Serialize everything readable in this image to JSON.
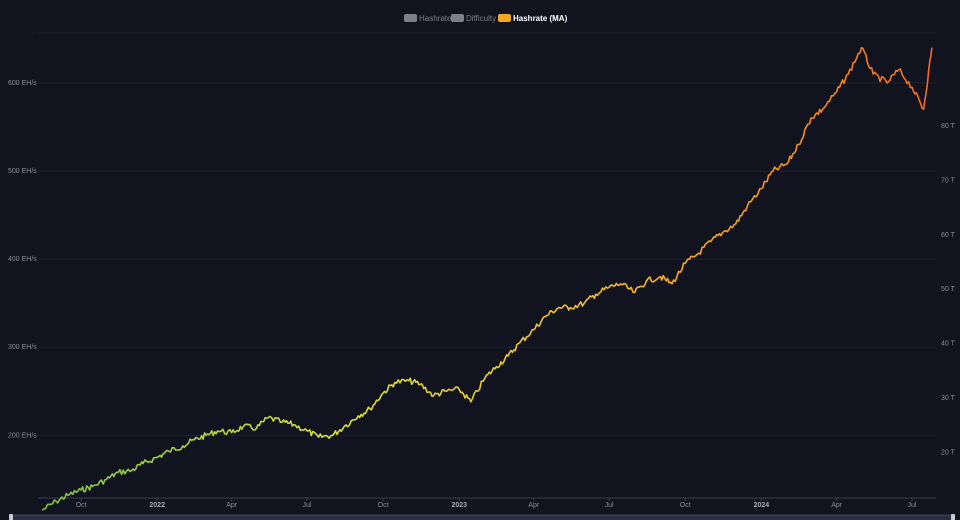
{
  "legend": [
    {
      "label": "Hashrate",
      "color": "#7d7f8a",
      "active": false
    },
    {
      "label": "Difficulty",
      "color": "#7d7f8a",
      "active": false
    },
    {
      "label": "Hashrate (MA)",
      "color": "#f5a623",
      "active": true
    }
  ],
  "chart_data": {
    "type": "line",
    "title": "",
    "series": [
      {
        "name": "Hashrate (MA)",
        "x": [
          "2021-08-15",
          "2021-09-01",
          "2021-09-15",
          "2021-10-01",
          "2021-10-15",
          "2021-11-01",
          "2021-11-15",
          "2021-12-01",
          "2021-12-15",
          "2022-01-01",
          "2022-01-15",
          "2022-02-01",
          "2022-02-15",
          "2022-03-01",
          "2022-03-15",
          "2022-04-01",
          "2022-04-15",
          "2022-05-01",
          "2022-05-15",
          "2022-06-01",
          "2022-06-15",
          "2022-07-01",
          "2022-07-15",
          "2022-08-01",
          "2022-08-15",
          "2022-09-01",
          "2022-09-15",
          "2022-10-01",
          "2022-10-15",
          "2022-11-01",
          "2022-11-15",
          "2022-12-01",
          "2022-12-15",
          "2023-01-01",
          "2023-01-15",
          "2023-02-01",
          "2023-02-15",
          "2023-03-01",
          "2023-03-15",
          "2023-04-01",
          "2023-04-15",
          "2023-05-01",
          "2023-05-15",
          "2023-06-01",
          "2023-06-15",
          "2023-07-01",
          "2023-07-15",
          "2023-08-01",
          "2023-08-15",
          "2023-09-01",
          "2023-09-15",
          "2023-10-01",
          "2023-10-15",
          "2023-11-01",
          "2023-11-15",
          "2023-12-01",
          "2023-12-15",
          "2024-01-01",
          "2024-01-15",
          "2024-02-01",
          "2024-02-15",
          "2024-03-01",
          "2024-03-15",
          "2024-04-01",
          "2024-04-15",
          "2024-05-01",
          "2024-05-15",
          "2024-06-01",
          "2024-06-15",
          "2024-07-01",
          "2024-07-15",
          "2024-07-25"
        ],
        "values": [
          115,
          125,
          132,
          138,
          142,
          150,
          158,
          160,
          168,
          175,
          182,
          188,
          195,
          200,
          205,
          203,
          210,
          208,
          220,
          215,
          212,
          205,
          198,
          200,
          210,
          222,
          230,
          248,
          260,
          262,
          258,
          245,
          250,
          252,
          238,
          265,
          278,
          290,
          305,
          320,
          335,
          345,
          345,
          350,
          360,
          368,
          372,
          362,
          375,
          380,
          372,
          395,
          405,
          420,
          430,
          440,
          460,
          480,
          500,
          508,
          530,
          560,
          570,
          590,
          610,
          640,
          610,
          600,
          615,
          595,
          570,
          640
        ]
      }
    ],
    "xlabel": "",
    "ylabel_left": "",
    "ylabel_right": "",
    "xlim": [
      "2021-08-10",
      "2024-07-30"
    ],
    "y_left_lim": [
      130,
      660
    ],
    "y_left_ticks": [
      200,
      300,
      400,
      500,
      600
    ],
    "y_left_tick_labels": [
      "200 EH/s",
      "300 EH/s",
      "400 EH/s",
      "500 EH/s",
      "600 EH/s"
    ],
    "y_right_lim": [
      11.77,
      97.7
    ],
    "y_right_ticks": [
      20,
      30,
      40,
      50,
      60,
      70,
      80
    ],
    "y_right_tick_labels": [
      "20 T",
      "30 T",
      "40 T",
      "50 T",
      "60 T",
      "70 T",
      "80 T"
    ],
    "x_ticks": [
      {
        "date": "2021-10-01",
        "label": "Oct",
        "bold": false
      },
      {
        "date": "2022-01-01",
        "label": "2022",
        "bold": true
      },
      {
        "date": "2022-04-01",
        "label": "Apr",
        "bold": false
      },
      {
        "date": "2022-07-01",
        "label": "Jul",
        "bold": false
      },
      {
        "date": "2022-10-01",
        "label": "Oct",
        "bold": false
      },
      {
        "date": "2023-01-01",
        "label": "2023",
        "bold": true
      },
      {
        "date": "2023-04-01",
        "label": "Apr",
        "bold": false
      },
      {
        "date": "2023-07-01",
        "label": "Jul",
        "bold": false
      },
      {
        "date": "2023-10-01",
        "label": "Oct",
        "bold": false
      },
      {
        "date": "2024-01-01",
        "label": "2024",
        "bold": true
      },
      {
        "date": "2024-04-01",
        "label": "Apr",
        "bold": false
      },
      {
        "date": "2024-07-01",
        "label": "Jul",
        "bold": false
      }
    ],
    "grid": true,
    "legend_position": "top-center",
    "line_gradient": [
      "#7cc04a",
      "#d9e03a",
      "#f8b520",
      "#f56a1e"
    ]
  }
}
